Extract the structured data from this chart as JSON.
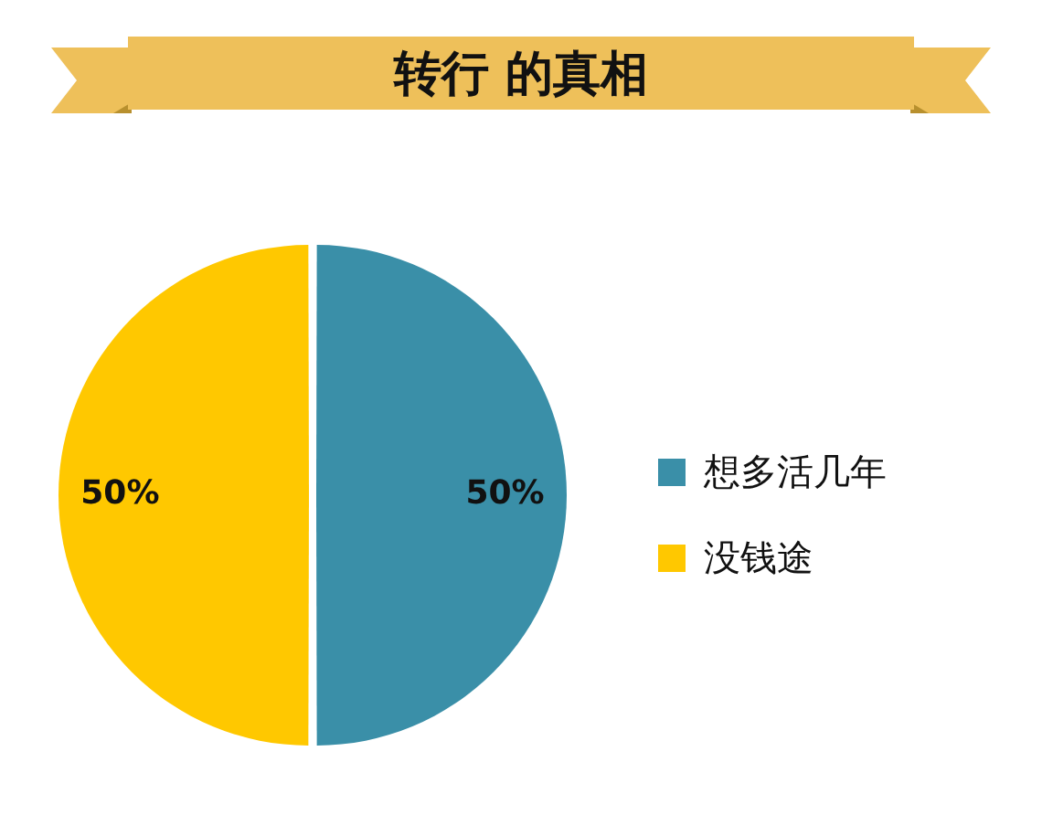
{
  "chart_data": {
    "type": "pie",
    "title": "转行 的真相",
    "categories": [
      "想多活几年",
      "没钱途"
    ],
    "values": [
      50,
      50
    ],
    "colors": [
      "#3a8fa8",
      "#ffc800"
    ],
    "value_labels": [
      "50%",
      "50%"
    ],
    "legend": "right"
  }
}
